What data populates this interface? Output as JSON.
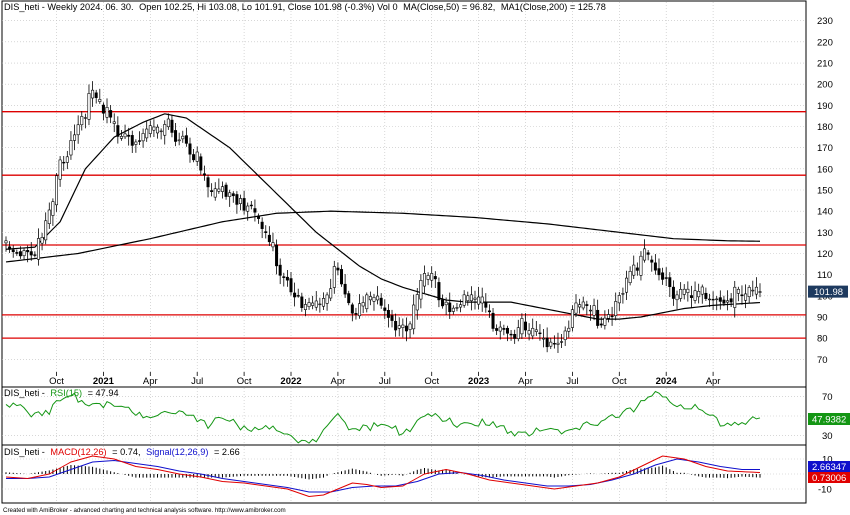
{
  "chart_data": [
    {
      "type": "candlestick",
      "panel": "price",
      "title_prefix": "DIS_heti - Weekly 2024. 06. 30.",
      "title_ohlc": "Open 102.25, Hi 103.08, Lo 101.91, Close 101.98 (-0.3%) Vol 0",
      "ma50_label": "MA(Close,50) = 96.82,",
      "ma200_label": "MA1(Close,200) = 125.78",
      "last_price_label": "101.98",
      "last_price": 101.98,
      "ylim": [
        64,
        236
      ],
      "yticks": [
        70,
        80,
        90,
        100,
        110,
        120,
        130,
        140,
        150,
        160,
        170,
        180,
        190,
        200,
        210,
        220,
        230
      ],
      "ytick_labels": [
        "70",
        "80",
        "90",
        "100",
        "110",
        "120",
        "130",
        "140",
        "150",
        "160",
        "170",
        "180",
        "190",
        "200",
        "210",
        "220",
        "230"
      ],
      "horizontal_levels": [
        187,
        157,
        124,
        91,
        80
      ],
      "start_week": "2020-06-28",
      "weeks": 210,
      "x_tick_labels": [
        "Oct",
        "2021",
        "Apr",
        "Jul",
        "Oct",
        "2022",
        "Apr",
        "Jul",
        "Oct",
        "2023",
        "Apr",
        "Jul",
        "Oct",
        "2024",
        "Apr"
      ],
      "x_tick_weeks": [
        14,
        27,
        40,
        53,
        66,
        79,
        92,
        105,
        118,
        131,
        144,
        157,
        170,
        183,
        196
      ],
      "x_tick_bold": [
        false,
        true,
        false,
        false,
        false,
        true,
        false,
        false,
        false,
        true,
        false,
        false,
        false,
        true,
        false
      ],
      "close_anchors": [
        [
          0,
          126
        ],
        [
          4,
          125
        ],
        [
          8,
          124
        ],
        [
          10,
          130
        ],
        [
          13,
          145
        ],
        [
          15,
          165
        ],
        [
          17,
          172
        ],
        [
          19,
          180
        ],
        [
          21,
          188
        ],
        [
          23,
          195
        ],
        [
          25,
          195
        ],
        [
          27,
          188
        ],
        [
          29,
          186
        ],
        [
          31,
          180
        ],
        [
          33,
          182
        ],
        [
          35,
          178
        ],
        [
          37,
          176
        ],
        [
          39,
          180
        ],
        [
          41,
          178
        ],
        [
          43,
          180
        ],
        [
          45,
          182
        ],
        [
          47,
          180
        ],
        [
          49,
          178
        ],
        [
          51,
          172
        ],
        [
          53,
          168
        ],
        [
          55,
          155
        ],
        [
          57,
          150
        ],
        [
          59,
          150
        ],
        [
          61,
          153
        ],
        [
          63,
          150
        ],
        [
          65,
          150
        ],
        [
          67,
          145
        ],
        [
          69,
          140
        ],
        [
          71,
          132
        ],
        [
          73,
          128
        ],
        [
          75,
          120
        ],
        [
          77,
          112
        ],
        [
          79,
          108
        ],
        [
          81,
          105
        ],
        [
          83,
          95
        ],
        [
          85,
          96
        ],
        [
          87,
          98
        ],
        [
          89,
          100
        ],
        [
          91,
          120
        ],
        [
          93,
          110
        ],
        [
          95,
          100
        ],
        [
          97,
          95
        ],
        [
          99,
          98
        ],
        [
          101,
          102
        ],
        [
          103,
          98
        ],
        [
          105,
          96
        ],
        [
          107,
          92
        ],
        [
          109,
          90
        ],
        [
          111,
          88
        ],
        [
          113,
          95
        ],
        [
          115,
          105
        ],
        [
          117,
          112
        ],
        [
          119,
          106
        ],
        [
          121,
          102
        ],
        [
          123,
          97
        ],
        [
          125,
          99
        ],
        [
          127,
          100
        ],
        [
          129,
          102
        ],
        [
          131,
          100
        ],
        [
          133,
          95
        ],
        [
          135,
          92
        ],
        [
          137,
          90
        ],
        [
          139,
          88
        ],
        [
          141,
          87
        ],
        [
          143,
          87
        ],
        [
          145,
          85
        ],
        [
          147,
          84
        ],
        [
          149,
          82
        ],
        [
          151,
          81
        ],
        [
          153,
          84
        ],
        [
          155,
          86
        ],
        [
          157,
          95
        ],
        [
          159,
          98
        ],
        [
          161,
          96
        ],
        [
          163,
          94
        ],
        [
          165,
          91
        ],
        [
          167,
          94
        ],
        [
          169,
          100
        ],
        [
          171,
          108
        ],
        [
          173,
          112
        ],
        [
          175,
          114
        ],
        [
          177,
          120
        ],
        [
          179,
          121
        ],
        [
          181,
          116
        ],
        [
          183,
          112
        ],
        [
          185,
          105
        ],
        [
          187,
          103
        ],
        [
          189,
          102
        ],
        [
          191,
          101
        ],
        [
          193,
          102
        ],
        [
          195,
          102
        ],
        [
          197,
          102
        ],
        [
          199,
          102
        ],
        [
          201,
          102
        ],
        [
          203,
          102
        ],
        [
          205,
          102
        ],
        [
          207,
          102
        ],
        [
          209,
          102
        ]
      ]
    },
    {
      "type": "line",
      "panel": "rsi",
      "name_prefix": "DIS_heti -",
      "name_label": "RSI(15)",
      "value_label": "= 47.94",
      "last_value_label": "47.9382",
      "ylim": [
        22,
        78
      ],
      "yticks": [
        30,
        50,
        70
      ],
      "ytick_labels": [
        "30",
        "50",
        "70"
      ],
      "anchors": [
        [
          0,
          62
        ],
        [
          4,
          60
        ],
        [
          8,
          57
        ],
        [
          12,
          60
        ],
        [
          16,
          67
        ],
        [
          20,
          72
        ],
        [
          24,
          68
        ],
        [
          28,
          66
        ],
        [
          32,
          60
        ],
        [
          36,
          58
        ],
        [
          40,
          55
        ],
        [
          44,
          56
        ],
        [
          48,
          55
        ],
        [
          52,
          55
        ],
        [
          56,
          46
        ],
        [
          60,
          48
        ],
        [
          64,
          44
        ],
        [
          68,
          42
        ],
        [
          72,
          40
        ],
        [
          76,
          35
        ],
        [
          80,
          32
        ],
        [
          84,
          28
        ],
        [
          88,
          33
        ],
        [
          92,
          50
        ],
        [
          96,
          42
        ],
        [
          100,
          45
        ],
        [
          104,
          40
        ],
        [
          108,
          38
        ],
        [
          112,
          42
        ],
        [
          116,
          55
        ],
        [
          120,
          48
        ],
        [
          124,
          45
        ],
        [
          128,
          48
        ],
        [
          132,
          45
        ],
        [
          136,
          40
        ],
        [
          140,
          38
        ],
        [
          144,
          37
        ],
        [
          148,
          36
        ],
        [
          152,
          35
        ],
        [
          156,
          40
        ],
        [
          160,
          45
        ],
        [
          164,
          42
        ],
        [
          168,
          50
        ],
        [
          172,
          62
        ],
        [
          176,
          64
        ],
        [
          180,
          73
        ],
        [
          184,
          70
        ],
        [
          188,
          66
        ],
        [
          192,
          57
        ],
        [
          196,
          50
        ],
        [
          200,
          47
        ],
        [
          204,
          48
        ],
        [
          209,
          48
        ]
      ]
    },
    {
      "type": "line",
      "panel": "macd",
      "name_prefix": "DIS_heti -",
      "macd_label": "MACD(12,26)",
      "macd_value_label": "= 0.74,",
      "signal_label": "Signal(12,26,9)",
      "signal_value_label": "= 2.66",
      "signal_last_label": "2.66347",
      "macd_last_label": "0.73006",
      "ylim": [
        -18,
        18
      ],
      "yticks": [
        10,
        0,
        -10
      ],
      "ytick_labels": [
        "10",
        "0",
        "-10"
      ],
      "macd_anchors": [
        [
          0,
          -2
        ],
        [
          6,
          -3
        ],
        [
          12,
          0
        ],
        [
          18,
          8
        ],
        [
          24,
          12
        ],
        [
          30,
          10
        ],
        [
          36,
          5
        ],
        [
          42,
          3
        ],
        [
          48,
          0
        ],
        [
          54,
          -2
        ],
        [
          60,
          -5
        ],
        [
          66,
          -6
        ],
        [
          72,
          -8
        ],
        [
          78,
          -10
        ],
        [
          84,
          -15
        ],
        [
          88,
          -14
        ],
        [
          92,
          -10
        ],
        [
          96,
          -6
        ],
        [
          100,
          -7
        ],
        [
          104,
          -9
        ],
        [
          110,
          -8
        ],
        [
          116,
          0
        ],
        [
          122,
          3
        ],
        [
          128,
          0
        ],
        [
          134,
          -4
        ],
        [
          140,
          -6
        ],
        [
          146,
          -8
        ],
        [
          152,
          -10
        ],
        [
          158,
          -8
        ],
        [
          164,
          -6
        ],
        [
          170,
          -2
        ],
        [
          176,
          5
        ],
        [
          182,
          12
        ],
        [
          188,
          10
        ],
        [
          194,
          5
        ],
        [
          200,
          2
        ],
        [
          209,
          1
        ]
      ],
      "signal_anchors": [
        [
          0,
          -3
        ],
        [
          6,
          -3
        ],
        [
          12,
          -2
        ],
        [
          18,
          3
        ],
        [
          24,
          8
        ],
        [
          30,
          9
        ],
        [
          36,
          7
        ],
        [
          42,
          5
        ],
        [
          48,
          2
        ],
        [
          54,
          0
        ],
        [
          60,
          -3
        ],
        [
          66,
          -5
        ],
        [
          72,
          -7
        ],
        [
          78,
          -9
        ],
        [
          84,
          -12
        ],
        [
          90,
          -12
        ],
        [
          96,
          -9
        ],
        [
          102,
          -8
        ],
        [
          108,
          -8
        ],
        [
          114,
          -5
        ],
        [
          120,
          0
        ],
        [
          126,
          1
        ],
        [
          132,
          -1
        ],
        [
          138,
          -4
        ],
        [
          144,
          -6
        ],
        [
          150,
          -8
        ],
        [
          156,
          -8
        ],
        [
          162,
          -7
        ],
        [
          168,
          -4
        ],
        [
          174,
          0
        ],
        [
          180,
          6
        ],
        [
          186,
          10
        ],
        [
          192,
          8
        ],
        [
          198,
          5
        ],
        [
          204,
          3
        ],
        [
          209,
          3
        ]
      ]
    }
  ],
  "footer": {
    "credit": "Created with AmiBroker - advanced charting and technical analysis software. http://www.amibroker.com"
  },
  "colors": {
    "up": "#ffffff",
    "down": "#000000",
    "ma": "#000000",
    "levels": "#dd0000",
    "rsi": "#149614",
    "macd": "#e00000",
    "signal": "#1010cc",
    "grid": "#bfbfbf"
  }
}
